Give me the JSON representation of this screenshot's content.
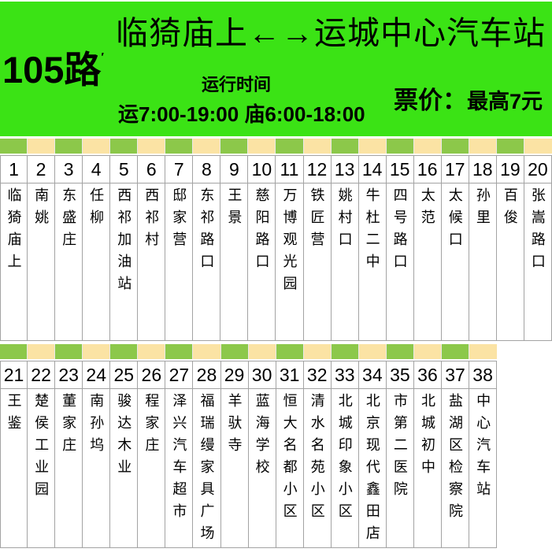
{
  "banner": {
    "route_number": "105路",
    "route_mark": "′",
    "title": "临猗庙上←→运城中心汽车站",
    "schedule_heading": "运行时间",
    "schedule_detail": "运7:00-19:00 庙6:00-18:00",
    "fare_label": "票价：",
    "fare_value": "最高7元"
  },
  "colors": {
    "banner_green": "#3be315",
    "stripe_green": "#8cc84a",
    "stripe_cream": "#fbe3a4",
    "grid_border": "#a3a3a3",
    "text": "#000000"
  },
  "stop_rows": [
    {
      "stops": [
        {
          "number": 1,
          "name": "临猗庙上"
        },
        {
          "number": 2,
          "name": "南姚"
        },
        {
          "number": 3,
          "name": "东盛庄"
        },
        {
          "number": 4,
          "name": "任柳"
        },
        {
          "number": 5,
          "name": "西祁加油站"
        },
        {
          "number": 6,
          "name": "西祁村"
        },
        {
          "number": 7,
          "name": "邸家营"
        },
        {
          "number": 8,
          "name": "东祁路口"
        },
        {
          "number": 9,
          "name": "王景"
        },
        {
          "number": 10,
          "name": "慈阳路口"
        },
        {
          "number": 11,
          "name": "万博观光园"
        },
        {
          "number": 12,
          "name": "铁匠营"
        },
        {
          "number": 13,
          "name": "姚村口"
        },
        {
          "number": 14,
          "name": "牛杜二中"
        },
        {
          "number": 15,
          "name": "四号路口"
        },
        {
          "number": 16,
          "name": "太范"
        },
        {
          "number": 17,
          "name": "太候口"
        },
        {
          "number": 18,
          "name": "孙里"
        },
        {
          "number": 19,
          "name": "百俊"
        },
        {
          "number": 20,
          "name": "张嵩路口"
        }
      ]
    },
    {
      "stops": [
        {
          "number": 21,
          "name": "王鉴"
        },
        {
          "number": 22,
          "name": "楚侯工业园"
        },
        {
          "number": 23,
          "name": "董家庄"
        },
        {
          "number": 24,
          "name": "南孙坞"
        },
        {
          "number": 25,
          "name": "骏达木业"
        },
        {
          "number": 26,
          "name": "程家庄"
        },
        {
          "number": 27,
          "name": "泽兴汽车超市"
        },
        {
          "number": 28,
          "name": "福瑞缦家具广场"
        },
        {
          "number": 29,
          "name": "羊驮寺"
        },
        {
          "number": 30,
          "name": "蓝海学校"
        },
        {
          "number": 31,
          "name": "恒大名都小区"
        },
        {
          "number": 32,
          "name": "清水名苑小区"
        },
        {
          "number": 33,
          "name": "北城印象小区"
        },
        {
          "number": 34,
          "name": "北京现代鑫田店"
        },
        {
          "number": 35,
          "name": "市第二医院"
        },
        {
          "number": 36,
          "name": "北城初中"
        },
        {
          "number": 37,
          "name": "盐湖区检察院"
        },
        {
          "number": 38,
          "name": "中心汽车站"
        }
      ]
    }
  ]
}
